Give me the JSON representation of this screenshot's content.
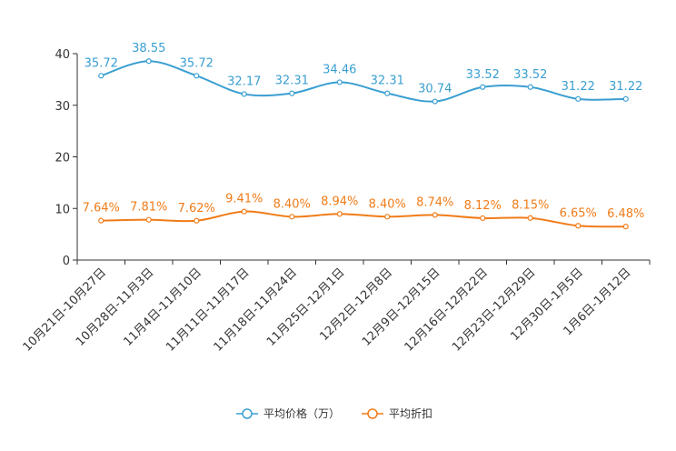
{
  "chart_data": {
    "type": "line",
    "title": "",
    "xlabel": "",
    "ylabel": "",
    "ylim": [
      0,
      40
    ],
    "yticks": [
      0,
      10,
      20,
      30,
      40
    ],
    "grid": false,
    "legend_position": "bottom-center",
    "categories": [
      "10月21日-10月27日",
      "10月28日-11月3日",
      "11月4日-11月10日",
      "11月11日-11月17日",
      "11月18日-11月24日",
      "11月25日-12月1日",
      "12月2日-12月8日",
      "12月9日-12月15日",
      "12月16日-12月22日",
      "12月23日-12月29日",
      "12月30日-1月5日",
      "1月6日-1月12日"
    ],
    "series": [
      {
        "name": "平均价格（万）",
        "color": "#3a9fd1",
        "smooth": true,
        "values": [
          35.72,
          38.55,
          35.72,
          32.17,
          32.31,
          34.46,
          32.31,
          30.74,
          33.52,
          33.52,
          31.22,
          31.22
        ],
        "labels": [
          "35.72",
          "38.55",
          "35.72",
          "32.17",
          "32.31",
          "34.46",
          "32.31",
          "30.74",
          "33.52",
          "33.52",
          "31.22",
          "31.22"
        ]
      },
      {
        "name": "平均折扣",
        "color": "#f07c19",
        "smooth": true,
        "values": [
          7.64,
          7.81,
          7.62,
          9.41,
          8.4,
          8.94,
          8.4,
          8.74,
          8.12,
          8.15,
          6.65,
          6.48
        ],
        "labels": [
          "7.64%",
          "7.81%",
          "7.62%",
          "9.41%",
          "8.40%",
          "8.94%",
          "8.40%",
          "8.74%",
          "8.12%",
          "8.15%",
          "6.65%",
          "6.48%"
        ]
      }
    ]
  }
}
